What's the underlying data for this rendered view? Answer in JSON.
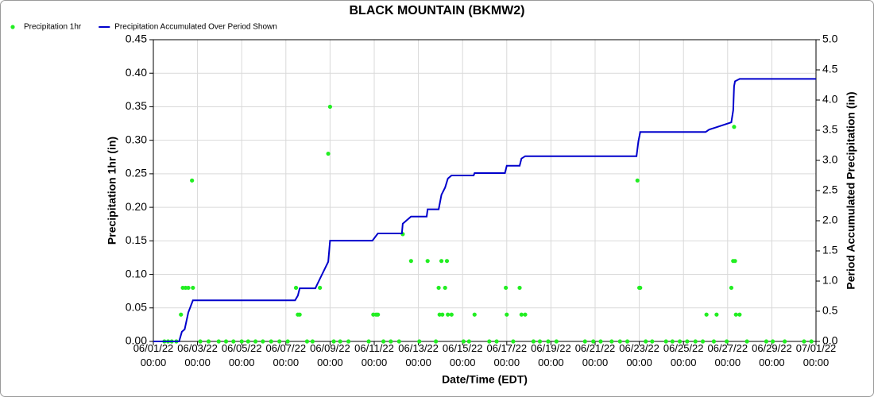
{
  "chart_data": {
    "type": "combo",
    "title": "BLACK MOUNTAIN (BKMW2)",
    "x_label": "Date/Time (EDT)",
    "y_label": "Precipitation 1hr (in)",
    "y2_label": "Period Accumulated Precipitation (in)",
    "xlim": [
      "06/01/22 00:00",
      "07/01/22 00:00"
    ],
    "xticks": [
      "06/01/22 00:00",
      "06/03/22 00:00",
      "06/05/22 00:00",
      "06/07/22 00:00",
      "06/09/22 00:00",
      "06/11/22 00:00",
      "06/13/22 00:00",
      "06/15/22 00:00",
      "06/17/22 00:00",
      "06/19/22 00:00",
      "06/21/22 00:00",
      "06/23/22 00:00",
      "06/25/22 00:00",
      "06/27/22 00:00",
      "06/29/22 00:00",
      "07/01/22 00:00"
    ],
    "ylim": [
      0,
      0.45
    ],
    "yticks": [
      {
        "value": 0,
        "label": "0.00"
      },
      {
        "value": 0.05,
        "label": "0.05"
      },
      {
        "value": 0.1,
        "label": "0.10"
      },
      {
        "value": 0.15,
        "label": "0.15"
      },
      {
        "value": 0.2,
        "label": "0.20"
      },
      {
        "value": 0.25,
        "label": "0.25"
      },
      {
        "value": 0.3,
        "label": "0.30"
      },
      {
        "value": 0.35,
        "label": "0.35"
      },
      {
        "value": 0.4,
        "label": "0.40"
      },
      {
        "value": 0.45,
        "label": "0.45"
      }
    ],
    "y2lim": [
      0,
      5
    ],
    "y2ticks": [
      {
        "value": 0,
        "label": "0.0"
      },
      {
        "value": 0.5,
        "label": "0.5"
      },
      {
        "value": 1,
        "label": "1.0"
      },
      {
        "value": 1.5,
        "label": "1.5"
      },
      {
        "value": 2,
        "label": "2.0"
      },
      {
        "value": 2.5,
        "label": "2.5"
      },
      {
        "value": 3,
        "label": "3.0"
      },
      {
        "value": 3.5,
        "label": "3.5"
      },
      {
        "value": 4,
        "label": "4.0"
      },
      {
        "value": 4.5,
        "label": "4.5"
      },
      {
        "value": 5,
        "label": "5.0"
      }
    ],
    "grid": true,
    "legend": "top-left",
    "series": [
      {
        "name": "Precipitation 1hr",
        "type": "scatter",
        "axis": "y",
        "color": "#22ee22",
        "x": [
          "06/01/22 12:00",
          "06/01/22 16:00",
          "06/01/22 20:00",
          "06/02/22 01:00",
          "06/02/22 06:00",
          "06/02/22 08:00",
          "06/02/22 11:00",
          "06/02/22 14:00",
          "06/02/22 18:00",
          "06/02/22 19:00",
          "06/03/22 03:00",
          "06/03/22 12:00",
          "06/03/22 23:00",
          "06/04/22 07:00",
          "06/04/22 15:00",
          "06/05/22 00:00",
          "06/05/22 07:00",
          "06/05/22 15:00",
          "06/05/22 23:00",
          "06/06/22 08:00",
          "06/06/22 17:00",
          "06/07/22 02:00",
          "06/07/22 11:00",
          "06/07/22 13:00",
          "06/07/22 15:00",
          "06/07/22 23:00",
          "06/08/22 05:00",
          "06/08/22 13:00",
          "06/08/22 22:00",
          "06/09/22 00:00",
          "06/09/22 04:00",
          "06/09/22 11:00",
          "06/09/22 20:00",
          "06/10/22 18:00",
          "06/10/22 23:00",
          "06/11/22 02:00",
          "06/11/22 04:00",
          "06/11/22 10:00",
          "06/11/22 18:00",
          "06/12/22 03:00",
          "06/12/22 07:00",
          "06/12/22 16:00",
          "06/13/22 01:00",
          "06/13/22 10:00",
          "06/13/22 19:00",
          "06/13/22 22:00",
          "06/13/22 23:00",
          "06/14/22 01:00",
          "06/14/22 02:00",
          "06/14/22 05:00",
          "06/14/22 07:00",
          "06/14/22 08:00",
          "06/14/22 12:00",
          "06/15/22 01:00",
          "06/15/22 07:00",
          "06/15/22 13:00",
          "06/16/22 05:00",
          "06/16/22 13:00",
          "06/16/22 23:00",
          "06/17/22 00:00",
          "06/17/22 07:00",
          "06/17/22 14:00",
          "06/17/22 16:00",
          "06/17/22 20:00",
          "06/18/22 05:00",
          "06/18/22 12:00",
          "06/18/22 21:00",
          "06/19/22 06:00",
          "06/20/22 13:00",
          "06/20/22 22:00",
          "06/21/22 06:00",
          "06/21/22 18:00",
          "06/22/22 03:00",
          "06/22/22 11:00",
          "06/22/22 22:00",
          "06/23/22 00:00",
          "06/23/22 01:00",
          "06/23/22 07:00",
          "06/23/22 14:00",
          "06/24/22 05:00",
          "06/24/22 12:00",
          "06/24/22 20:00",
          "06/25/22 04:00",
          "06/25/22 13:00",
          "06/25/22 21:00",
          "06/26/22 01:00",
          "06/26/22 09:00",
          "06/26/22 12:00",
          "06/26/22 23:00",
          "06/27/22 04:00",
          "06/27/22 06:00",
          "06/27/22 07:00",
          "06/27/22 08:00",
          "06/27/22 09:00",
          "06/27/22 13:00",
          "06/27/22 21:00",
          "06/28/22 18:00",
          "06/29/22 01:00",
          "06/29/22 14:00",
          "06/30/22 11:00",
          "06/30/22 19:00"
        ],
        "values": [
          0,
          0,
          0,
          0,
          0.04,
          0.08,
          0.08,
          0.08,
          0.24,
          0.08,
          0,
          0,
          0,
          0,
          0,
          0,
          0,
          0,
          0,
          0,
          0,
          0,
          0.08,
          0.04,
          0.04,
          0,
          0,
          0.08,
          0.28,
          0.35,
          0,
          0,
          0,
          0,
          0.04,
          0.04,
          0.04,
          0,
          0,
          0,
          0.16,
          0.12,
          0,
          0.12,
          0,
          0.08,
          0.04,
          0.12,
          0.04,
          0.08,
          0.12,
          0.04,
          0.04,
          0,
          0,
          0.04,
          0,
          0,
          0.08,
          0.04,
          0,
          0.08,
          0.04,
          0.04,
          0,
          0,
          0,
          0,
          0,
          0,
          0,
          0,
          0,
          0,
          0.24,
          0.08,
          0.08,
          0,
          0,
          0,
          0,
          0,
          0,
          0,
          0,
          0.04,
          0,
          0.04,
          0,
          0.08,
          0.12,
          0.32,
          0.12,
          0.04,
          0.04,
          0,
          0,
          0,
          0,
          0,
          0
        ]
      },
      {
        "name": "Precipitation Accumulated Over Period Shown",
        "type": "line",
        "axis": "y2",
        "color": "#0000cc",
        "x": [
          "06/01/22 00:00",
          "06/02/22 04:00",
          "06/02/22 07:00",
          "06/02/22 10:00",
          "06/02/22 14:00",
          "06/02/22 19:00",
          "06/07/22 10:00",
          "06/07/22 13:00",
          "06/07/22 15:00",
          "06/08/22 08:00",
          "06/08/22 13:00",
          "06/08/22 22:00",
          "06/09/22 00:00",
          "06/10/22 22:00",
          "06/11/22 04:00",
          "06/12/22 06:00",
          "06/12/22 07:00",
          "06/12/22 16:00",
          "06/13/22 09:00",
          "06/13/22 10:00",
          "06/13/22 22:00",
          "06/14/22 01:00",
          "06/14/22 05:00",
          "06/14/22 08:00",
          "06/14/22 12:00",
          "06/15/22 12:00",
          "06/15/22 13:00",
          "06/16/22 22:00",
          "06/17/22 00:00",
          "06/17/22 14:00",
          "06/17/22 16:00",
          "06/17/22 20:00",
          "06/22/22 21:00",
          "06/22/22 23:00",
          "06/23/22 01:00",
          "06/26/22 00:00",
          "06/26/22 04:00",
          "06/26/22 12:00",
          "06/27/22 04:00",
          "06/27/22 06:00",
          "06/27/22 07:00",
          "06/27/22 08:00",
          "06/27/22 13:00",
          "07/01/22 00:00"
        ],
        "values": [
          0,
          0,
          0.16,
          0.2,
          0.48,
          0.68,
          0.68,
          0.76,
          0.88,
          0.88,
          1.04,
          1.32,
          1.67,
          1.67,
          1.79,
          1.79,
          1.95,
          2.07,
          2.07,
          2.19,
          2.19,
          2.43,
          2.55,
          2.7,
          2.75,
          2.75,
          2.79,
          2.79,
          2.91,
          2.91,
          3.03,
          3.07,
          3.07,
          3.31,
          3.47,
          3.47,
          3.51,
          3.55,
          3.63,
          3.83,
          4.23,
          4.31,
          4.35,
          4.35
        ]
      }
    ]
  }
}
